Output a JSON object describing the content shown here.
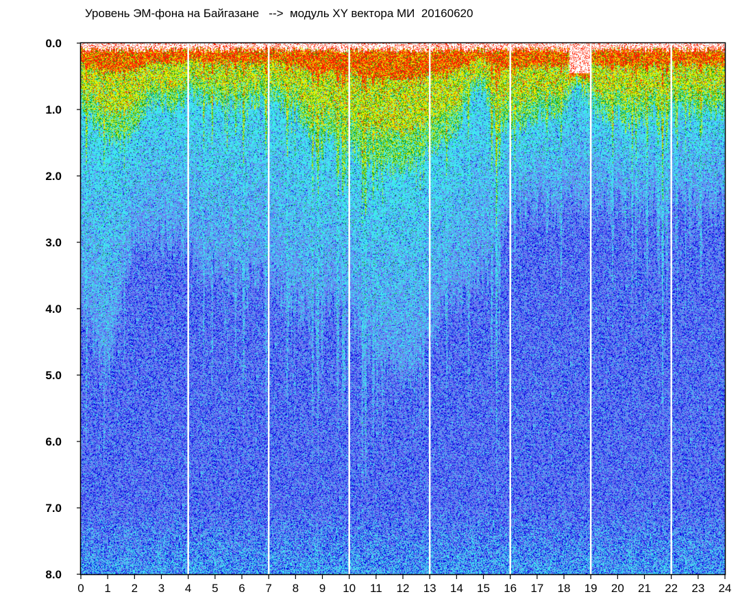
{
  "chart_data": {
    "type": "heatmap",
    "title": "Уровень ЭМ-фона на Байгазане   -->  модуль XY вектора МИ  20160620",
    "xlabel": "",
    "ylabel": "",
    "x_ticks": [
      "0",
      "1",
      "2",
      "3",
      "4",
      "5",
      "6",
      "7",
      "8",
      "9",
      "10",
      "11",
      "12",
      "13",
      "14",
      "15",
      "16",
      "17",
      "18",
      "19",
      "20",
      "21",
      "22",
      "23",
      "24"
    ],
    "y_ticks": [
      "0.0",
      "1.0",
      "2.0",
      "3.0",
      "4.0",
      "5.0",
      "6.0",
      "7.0",
      "8.0"
    ],
    "xlim": [
      0,
      24
    ],
    "ylim": [
      8.0,
      0.0
    ],
    "y_axis_inverted": true,
    "grid": false,
    "legend": "none",
    "color_scale": [
      "#0000e0",
      "#6a78f0",
      "#40e8f0",
      "#e8f000",
      "#10a010",
      "#ff2000"
    ],
    "white_gap_hours": [
      4.0,
      7.0,
      10.0,
      13.0,
      16.0,
      19.0,
      22.0
    ],
    "level_profile": {
      "hours": [
        0,
        0.5,
        1,
        1.5,
        2,
        2.5,
        3,
        3.5,
        4,
        4.5,
        5,
        5.5,
        6,
        6.5,
        7,
        7.5,
        8,
        8.5,
        9,
        9.5,
        10,
        10.5,
        11,
        11.5,
        12,
        12.5,
        13,
        13.5,
        14,
        14.5,
        15,
        15.5,
        16,
        16.5,
        17,
        17.5,
        18,
        18.5,
        19,
        19.5,
        20,
        20.5,
        21,
        21.5,
        22,
        22.5,
        23,
        23.5,
        24
      ],
      "warm_band_bottom": [
        0.9,
        1.2,
        1.4,
        1.5,
        1.3,
        0.9,
        0.9,
        1.0,
        0.8,
        0.8,
        0.9,
        0.9,
        0.8,
        0.9,
        0.8,
        0.9,
        1.0,
        1.3,
        1.4,
        1.5,
        1.6,
        1.7,
        1.8,
        1.9,
        1.9,
        1.8,
        1.6,
        1.5,
        1.3,
        0.8,
        0.6,
        1.2,
        1.2,
        1.2,
        1.1,
        1.0,
        1.0,
        0.6,
        0.9,
        1.1,
        1.1,
        1.2,
        1.1,
        1.0,
        1.0,
        1.0,
        1.0,
        1.0,
        1.0
      ],
      "cyan_band_bottom": [
        3.8,
        4.5,
        5.0,
        4.0,
        3.0,
        3.0,
        3.0,
        3.0,
        3.2,
        3.5,
        3.5,
        3.5,
        3.5,
        3.5,
        3.5,
        3.8,
        4.0,
        4.0,
        4.0,
        4.0,
        4.2,
        4.5,
        4.8,
        5.0,
        5.0,
        5.0,
        4.5,
        4.0,
        3.8,
        3.8,
        3.5,
        3.0,
        2.5,
        2.5,
        2.5,
        2.5,
        2.5,
        2.5,
        2.5,
        2.5,
        2.5,
        2.5,
        2.5,
        2.5,
        2.5,
        2.5,
        2.5,
        2.5,
        2.5
      ]
    }
  }
}
